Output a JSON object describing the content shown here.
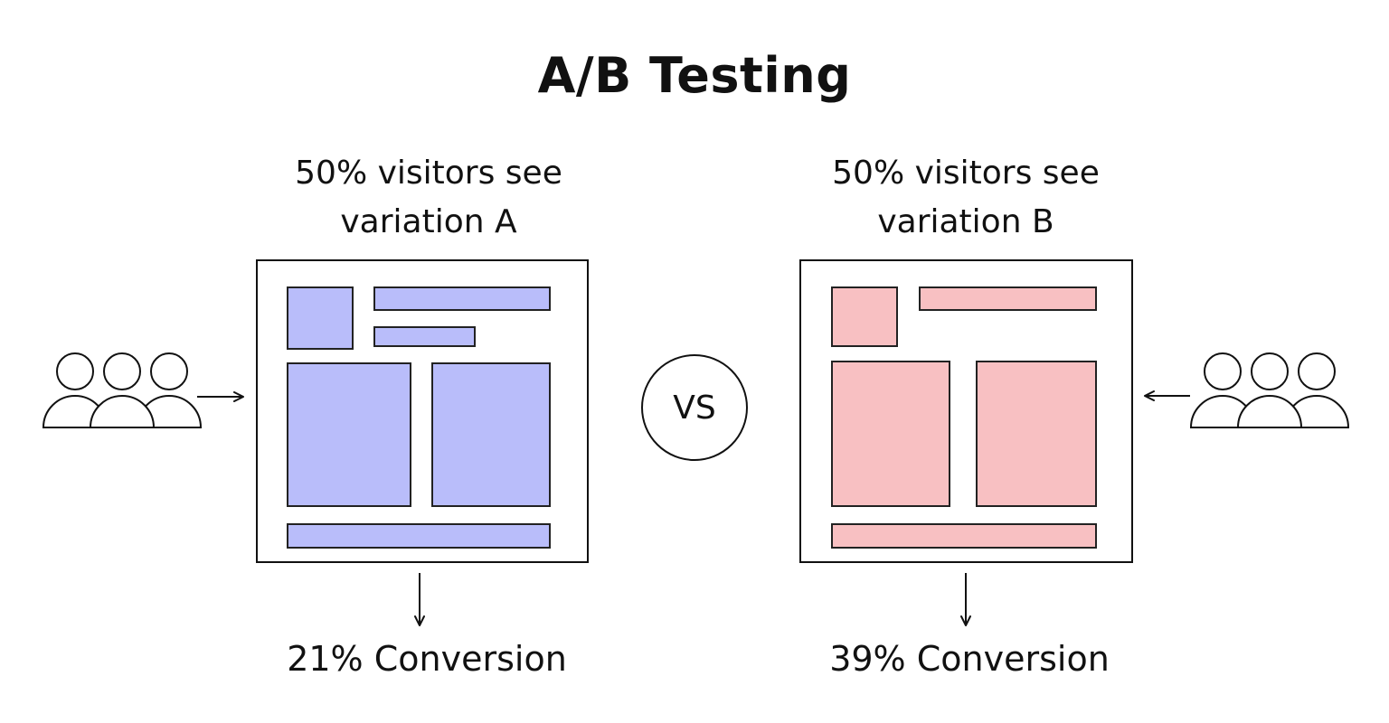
{
  "title": "A/B Testing",
  "variation_a": {
    "caption_line1": "50% visitors see",
    "caption_line2": "variation A",
    "result": "21% Conversion",
    "block_color": "#b9bdfa"
  },
  "variation_b": {
    "caption_line1": "50% visitors see",
    "caption_line2": "variation B",
    "result": "39% Conversion",
    "block_color": "#f8c0c2"
  },
  "vs_label": "VS",
  "icons": {
    "visitors_a": "user-group-icon",
    "visitors_b": "user-group-icon",
    "arrow_a_in": "arrow-right-icon",
    "arrow_b_in": "arrow-left-icon",
    "arrow_a_out": "arrow-down-icon",
    "arrow_b_out": "arrow-down-icon"
  }
}
